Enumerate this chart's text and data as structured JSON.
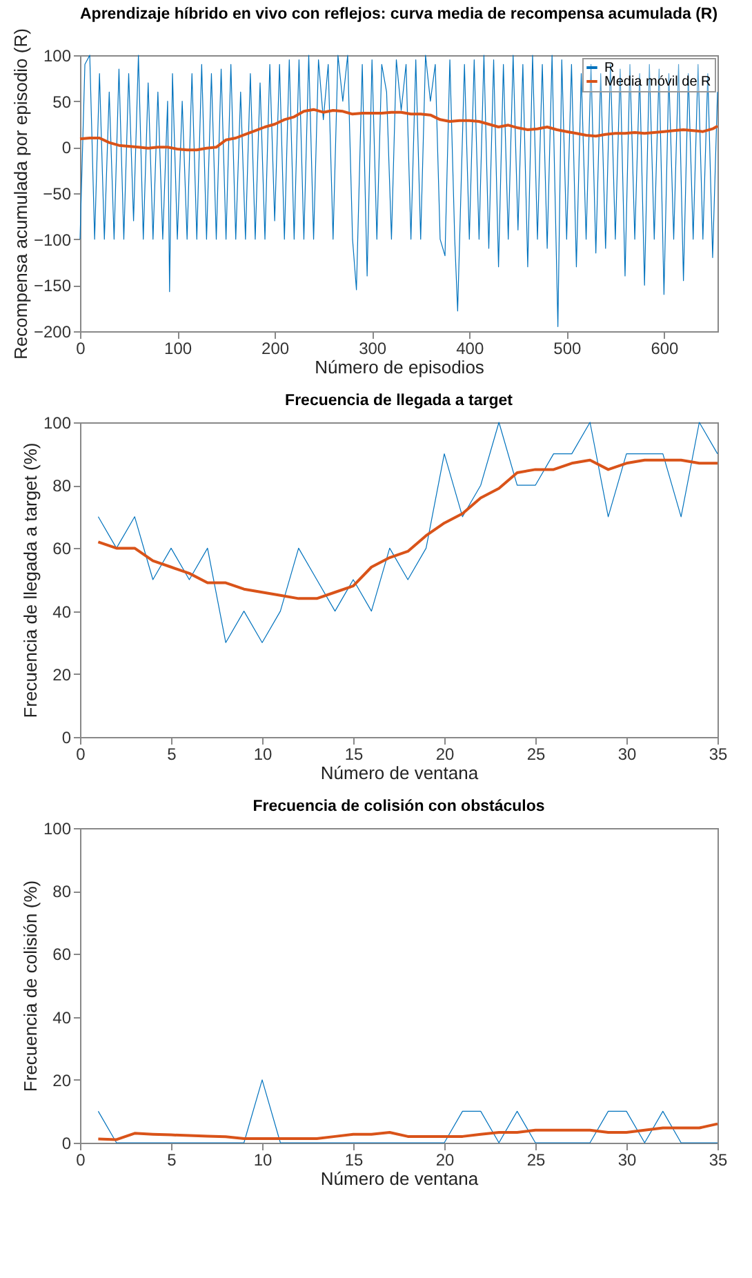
{
  "chart_data": [
    {
      "type": "line",
      "title": "Aprendizaje híbrido en vivo con reflejos: curva media de recompensa acumulada (R)",
      "xlabel": "Número de episodios",
      "ylabel": "Recompensa acumulada por episodio (R)",
      "xlim": [
        0,
        655
      ],
      "xticks": [
        0,
        100,
        200,
        300,
        400,
        500,
        600
      ],
      "ylim": [
        -200,
        100
      ],
      "yticks": [
        -200,
        -150,
        -100,
        -50,
        0,
        50,
        100
      ],
      "legend": "top right",
      "series": [
        {
          "name": "R",
          "color": "#0072bd",
          "x": [
            0,
            5,
            10,
            15,
            20,
            25,
            30,
            35,
            40,
            45,
            50,
            55,
            60,
            65,
            70,
            75,
            80,
            85,
            90,
            92,
            95,
            100,
            105,
            110,
            115,
            120,
            125,
            130,
            135,
            140,
            145,
            150,
            155,
            160,
            165,
            170,
            175,
            180,
            185,
            190,
            195,
            200,
            205,
            210,
            215,
            220,
            225,
            230,
            235,
            240,
            245,
            250,
            255,
            260,
            265,
            270,
            275,
            280,
            284,
            290,
            295,
            300,
            305,
            310,
            315,
            320,
            325,
            330,
            335,
            340,
            345,
            350,
            355,
            360,
            365,
            370,
            375,
            380,
            385,
            388,
            395,
            400,
            405,
            410,
            415,
            420,
            425,
            430,
            435,
            440,
            445,
            450,
            455,
            460,
            465,
            470,
            475,
            480,
            485,
            491,
            495,
            500,
            505,
            510,
            515,
            520,
            525,
            530,
            535,
            540,
            545,
            550,
            555,
            560,
            565,
            570,
            575,
            580,
            585,
            590,
            595,
            600,
            605,
            610,
            615,
            620,
            625,
            630,
            635,
            640,
            645,
            650,
            655
          ],
          "values": [
            -100,
            90,
            100,
            -100,
            80,
            -100,
            60,
            -100,
            85,
            -100,
            80,
            -80,
            100,
            -100,
            70,
            -100,
            60,
            -100,
            50,
            -157,
            80,
            -100,
            50,
            -100,
            80,
            -100,
            90,
            -100,
            80,
            -100,
            85,
            -100,
            90,
            -100,
            60,
            -100,
            80,
            -100,
            70,
            -100,
            90,
            -80,
            90,
            -100,
            95,
            -100,
            95,
            -100,
            100,
            -100,
            95,
            30,
            90,
            -100,
            100,
            50,
            100,
            -100,
            -155,
            90,
            -140,
            95,
            -100,
            90,
            60,
            -100,
            95,
            40,
            90,
            -100,
            95,
            -100,
            100,
            50,
            90,
            -100,
            -118,
            95,
            -100,
            -178,
            90,
            -100,
            95,
            -100,
            100,
            -110,
            95,
            -130,
            90,
            -100,
            100,
            -90,
            90,
            -130,
            100,
            -100,
            90,
            -110,
            100,
            -195,
            95,
            -100,
            90,
            -130,
            80,
            -100,
            90,
            -115,
            80,
            -110,
            90,
            -100,
            85,
            -140,
            90,
            -100,
            80,
            -150,
            90,
            -100,
            85,
            -160,
            80,
            -100,
            90,
            -145,
            80,
            -100,
            90,
            -100,
            80,
            -120,
            60
          ]
        },
        {
          "name": "Media móvil de R",
          "color": "#d95319",
          "x": [
            0,
            10,
            20,
            30,
            40,
            50,
            60,
            70,
            80,
            90,
            100,
            110,
            120,
            130,
            140,
            150,
            160,
            170,
            180,
            190,
            200,
            210,
            220,
            230,
            240,
            250,
            260,
            270,
            280,
            290,
            300,
            310,
            320,
            330,
            340,
            350,
            360,
            370,
            380,
            390,
            400,
            410,
            420,
            430,
            440,
            450,
            460,
            470,
            480,
            490,
            500,
            510,
            520,
            530,
            540,
            550,
            560,
            570,
            580,
            590,
            600,
            610,
            620,
            630,
            640,
            650,
            655
          ],
          "values": [
            9,
            10,
            10,
            5,
            2,
            1,
            0,
            -1,
            0,
            0,
            -2,
            -3,
            -3,
            -1,
            0,
            8,
            10,
            14,
            18,
            22,
            25,
            30,
            33,
            39,
            41,
            38,
            40,
            39,
            36,
            37,
            37,
            37,
            38,
            38,
            36,
            36,
            35,
            30,
            28,
            29,
            29,
            28,
            25,
            22,
            24,
            21,
            19,
            20,
            22,
            19,
            17,
            15,
            13,
            12,
            14,
            15,
            15,
            16,
            15,
            16,
            17,
            18,
            19,
            18,
            17,
            20,
            23
          ]
        }
      ]
    },
    {
      "type": "line",
      "title": "Frecuencia de llegada a target",
      "xlabel": "Número de ventana",
      "ylabel": "Frecuencia de llegada a target (%)",
      "xlim": [
        0,
        35
      ],
      "xticks": [
        0,
        5,
        10,
        15,
        20,
        25,
        30,
        35
      ],
      "ylim": [
        0,
        100
      ],
      "yticks": [
        0,
        20,
        40,
        60,
        80,
        100
      ],
      "x": [
        1,
        2,
        3,
        4,
        5,
        6,
        7,
        8,
        9,
        10,
        11,
        12,
        13,
        14,
        15,
        16,
        17,
        18,
        19,
        20,
        21,
        22,
        23,
        24,
        25,
        26,
        27,
        28,
        29,
        30,
        31,
        32,
        33,
        34,
        35
      ],
      "series": [
        {
          "color": "#0072bd",
          "values": [
            70,
            60,
            70,
            50,
            60,
            50,
            60,
            30,
            40,
            30,
            40,
            60,
            50,
            40,
            50,
            40,
            60,
            50,
            60,
            90,
            70,
            80,
            100,
            80,
            80,
            90,
            90,
            100,
            70,
            90,
            90,
            90,
            70,
            100,
            90
          ]
        },
        {
          "color": "#d95319",
          "values": [
            62,
            60,
            60,
            56,
            54,
            52,
            49,
            49,
            47,
            46,
            45,
            44,
            44,
            46,
            48,
            54,
            57,
            59,
            64,
            68,
            71,
            76,
            79,
            84,
            85,
            85,
            87,
            88,
            85,
            87,
            88,
            88,
            88,
            87,
            87
          ]
        }
      ]
    },
    {
      "type": "line",
      "title": "Frecuencia de colisión con obstáculos",
      "xlabel": "Número de ventana",
      "ylabel": "Frecuencia de colisión (%)",
      "xlim": [
        0,
        35
      ],
      "xticks": [
        0,
        5,
        10,
        15,
        20,
        25,
        30,
        35
      ],
      "ylim": [
        0,
        100
      ],
      "yticks": [
        0,
        20,
        40,
        60,
        80,
        100
      ],
      "x": [
        1,
        2,
        3,
        4,
        5,
        6,
        7,
        8,
        9,
        10,
        11,
        12,
        13,
        14,
        15,
        16,
        17,
        18,
        19,
        20,
        21,
        22,
        23,
        24,
        25,
        26,
        27,
        28,
        29,
        30,
        31,
        32,
        33,
        34,
        35
      ],
      "series": [
        {
          "color": "#0072bd",
          "values": [
            10,
            0,
            0,
            0,
            0,
            0,
            0,
            0,
            0,
            20,
            0,
            0,
            0,
            0,
            0,
            0,
            0,
            0,
            0,
            0,
            10,
            10,
            0,
            10,
            0,
            0,
            0,
            0,
            10,
            10,
            0,
            10,
            0,
            0,
            0
          ]
        },
        {
          "color": "#d95319",
          "values": [
            1.2,
            1,
            3,
            2.7,
            2.5,
            2.3,
            2.1,
            1.9,
            1.3,
            1.3,
            1.3,
            1.3,
            1.3,
            2,
            2.7,
            2.7,
            3.3,
            2,
            2,
            2,
            2,
            2.7,
            3.3,
            3.3,
            4,
            4,
            4,
            4,
            3.3,
            3.3,
            4,
            4.7,
            4.7,
            4.7,
            6
          ]
        }
      ]
    }
  ]
}
